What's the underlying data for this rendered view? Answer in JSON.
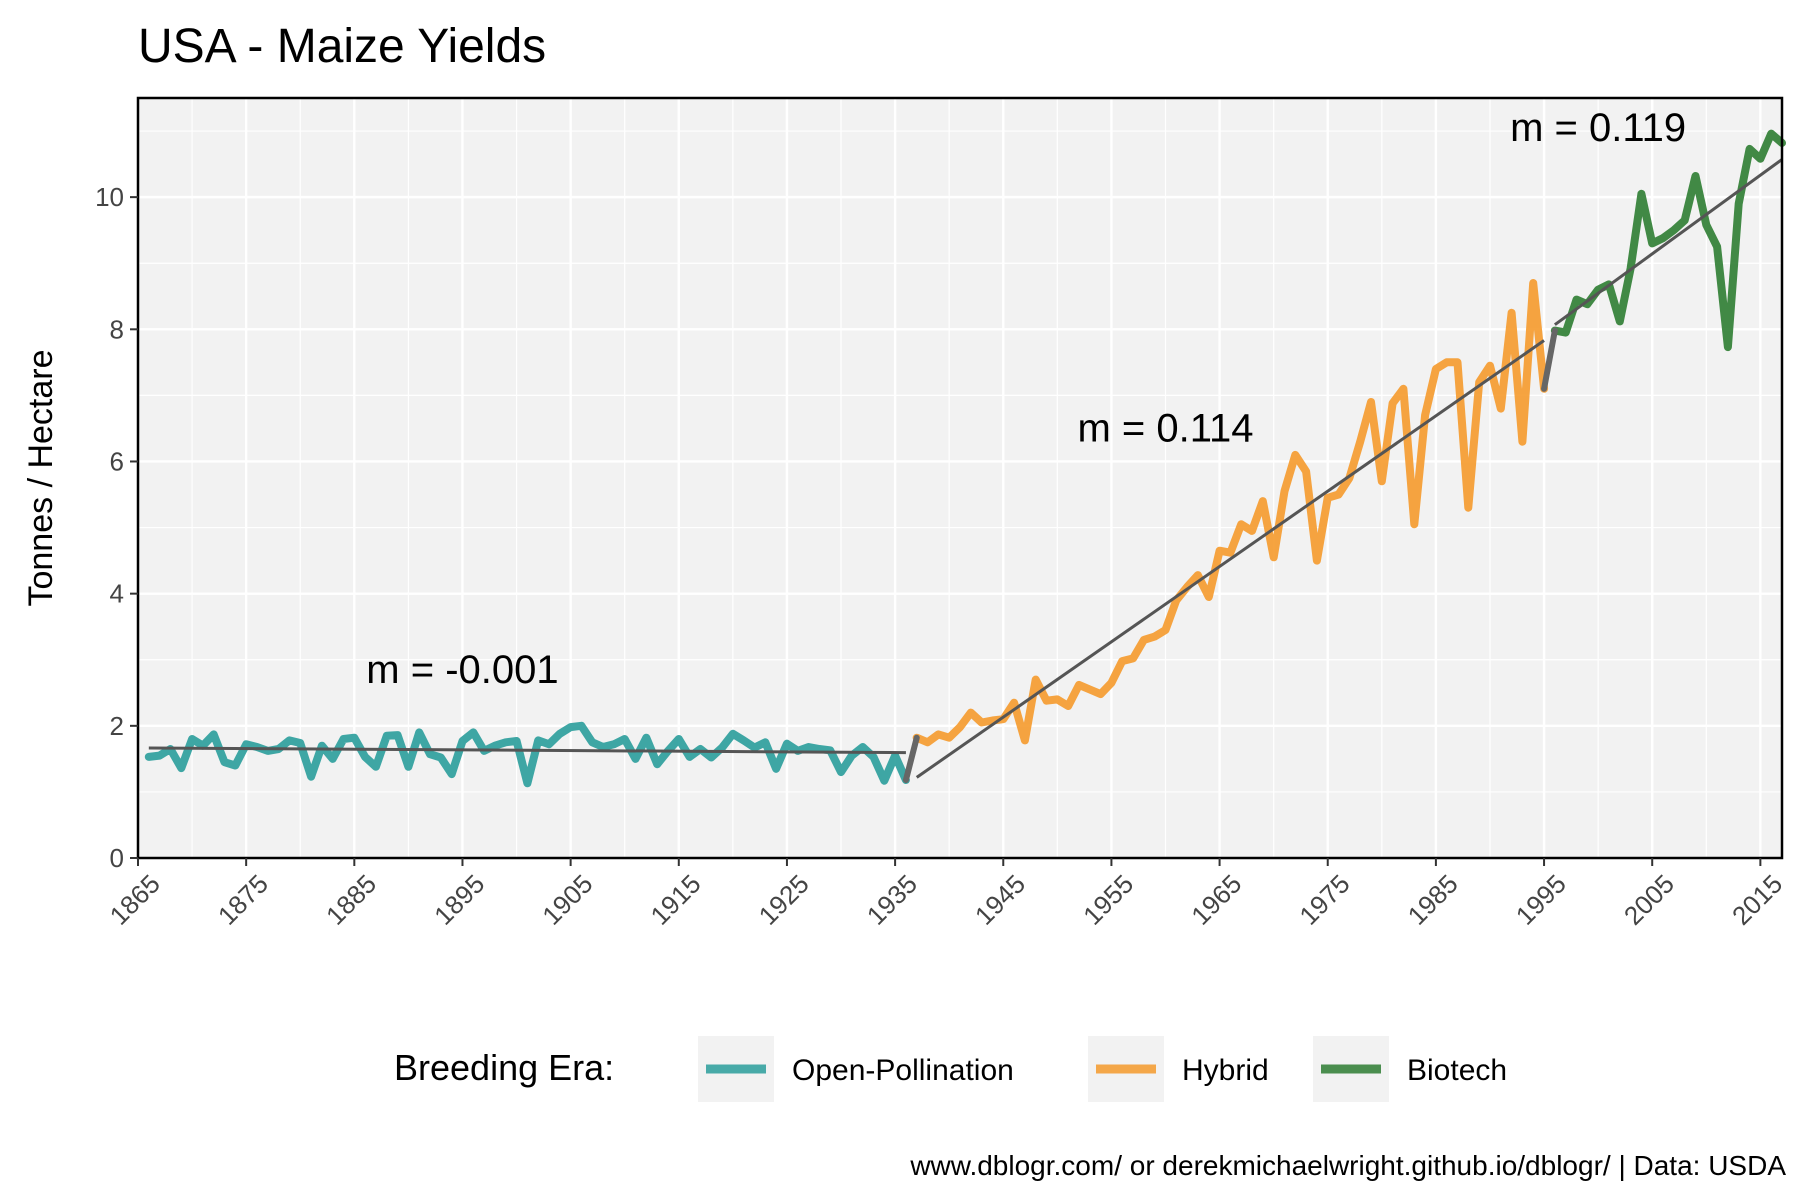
{
  "chart_data": {
    "type": "line",
    "title": "USA - Maize Yields",
    "xlabel": "",
    "ylabel": "Tonnes / Hectare",
    "xlim": [
      1865,
      2017
    ],
    "ylim": [
      0,
      11.5
    ],
    "x_ticks": [
      1865,
      1875,
      1885,
      1895,
      1905,
      1915,
      1925,
      1935,
      1945,
      1955,
      1965,
      1975,
      1985,
      1995,
      2005,
      2015
    ],
    "y_ticks": [
      0,
      2,
      4,
      6,
      8,
      10
    ],
    "grid": true,
    "legend_position": "bottom",
    "legend_title": "Breeding Era:",
    "caption": "www.dblogr.com/ or derekmichaelwright.github.io/dblogr/ | Data: USDA",
    "series": [
      {
        "name": "Open-Pollination",
        "color": "#2a9d9b",
        "x": [
          1866,
          1867,
          1868,
          1869,
          1870,
          1871,
          1872,
          1873,
          1874,
          1875,
          1876,
          1877,
          1878,
          1879,
          1880,
          1881,
          1882,
          1883,
          1884,
          1885,
          1886,
          1887,
          1888,
          1889,
          1890,
          1891,
          1892,
          1893,
          1894,
          1895,
          1896,
          1897,
          1898,
          1899,
          1900,
          1901,
          1902,
          1903,
          1904,
          1905,
          1906,
          1907,
          1908,
          1909,
          1910,
          1911,
          1912,
          1913,
          1914,
          1915,
          1916,
          1917,
          1918,
          1919,
          1920,
          1921,
          1922,
          1923,
          1924,
          1925,
          1926,
          1927,
          1928,
          1929,
          1930,
          1931,
          1932,
          1933,
          1934,
          1935,
          1936
        ],
        "values": [
          1.53,
          1.55,
          1.65,
          1.36,
          1.8,
          1.7,
          1.87,
          1.45,
          1.4,
          1.72,
          1.68,
          1.62,
          1.65,
          1.78,
          1.74,
          1.23,
          1.7,
          1.5,
          1.8,
          1.82,
          1.53,
          1.38,
          1.85,
          1.86,
          1.38,
          1.9,
          1.57,
          1.52,
          1.27,
          1.77,
          1.9,
          1.62,
          1.7,
          1.75,
          1.77,
          1.13,
          1.78,
          1.72,
          1.88,
          1.98,
          2.0,
          1.75,
          1.68,
          1.72,
          1.8,
          1.5,
          1.82,
          1.42,
          1.62,
          1.8,
          1.53,
          1.65,
          1.52,
          1.67,
          1.88,
          1.78,
          1.67,
          1.75,
          1.35,
          1.73,
          1.62,
          1.68,
          1.65,
          1.63,
          1.3,
          1.55,
          1.68,
          1.53,
          1.17,
          1.55,
          1.18
        ]
      },
      {
        "name": "Hybrid",
        "color": "#f59a2c",
        "x": [
          1937,
          1938,
          1939,
          1940,
          1941,
          1942,
          1943,
          1944,
          1945,
          1946,
          1947,
          1948,
          1949,
          1950,
          1951,
          1952,
          1953,
          1954,
          1955,
          1956,
          1957,
          1958,
          1959,
          1960,
          1961,
          1962,
          1963,
          1964,
          1965,
          1966,
          1967,
          1968,
          1969,
          1970,
          1971,
          1972,
          1973,
          1974,
          1975,
          1976,
          1977,
          1978,
          1979,
          1980,
          1981,
          1982,
          1983,
          1984,
          1985,
          1986,
          1987,
          1988,
          1989,
          1990,
          1991,
          1992,
          1993,
          1994,
          1995
        ],
        "values": [
          1.82,
          1.75,
          1.87,
          1.82,
          1.98,
          2.2,
          2.05,
          2.08,
          2.1,
          2.35,
          1.78,
          2.7,
          2.38,
          2.4,
          2.3,
          2.62,
          2.55,
          2.48,
          2.65,
          2.98,
          3.02,
          3.3,
          3.35,
          3.45,
          3.9,
          4.1,
          4.28,
          3.95,
          4.65,
          4.62,
          5.05,
          4.95,
          5.4,
          4.55,
          5.55,
          6.1,
          5.85,
          4.5,
          5.45,
          5.5,
          5.75,
          6.3,
          6.9,
          5.7,
          6.88,
          7.1,
          5.05,
          6.7,
          7.4,
          7.5,
          7.5,
          5.3,
          7.2,
          7.45,
          6.8,
          8.25,
          6.3,
          8.7,
          7.1
        ]
      },
      {
        "name": "Biotech",
        "color": "#2e7d32",
        "x": [
          1996,
          1997,
          1998,
          1999,
          2000,
          2001,
          2002,
          2003,
          2004,
          2005,
          2006,
          2007,
          2008,
          2009,
          2010,
          2011,
          2012,
          2013,
          2014,
          2015,
          2016,
          2017
        ],
        "values": [
          7.98,
          7.95,
          8.45,
          8.38,
          8.6,
          8.68,
          8.12,
          8.92,
          10.05,
          9.3,
          9.38,
          9.5,
          9.65,
          10.32,
          9.58,
          9.25,
          7.73,
          9.9,
          10.73,
          10.58,
          10.96,
          10.82
        ]
      }
    ],
    "trend_lines": [
      {
        "x": [
          1866,
          1936
        ],
        "values": [
          1.665,
          1.595
        ]
      },
      {
        "x": [
          1937,
          1995
        ],
        "values": [
          1.22,
          7.83
        ]
      },
      {
        "x": [
          1996,
          2017
        ],
        "values": [
          8.07,
          10.57
        ]
      }
    ],
    "connectors": [
      {
        "x": [
          1936,
          1937
        ],
        "values": [
          1.18,
          1.82
        ]
      },
      {
        "x": [
          1995,
          1996
        ],
        "values": [
          7.1,
          7.98
        ]
      }
    ],
    "annotations": [
      {
        "text": "m = -0.001",
        "x": 1895,
        "y": 2.65
      },
      {
        "text": "m = 0.114",
        "x": 1960,
        "y": 6.3
      },
      {
        "text": "m = 0.119",
        "x": 2000,
        "y": 10.85
      }
    ]
  }
}
